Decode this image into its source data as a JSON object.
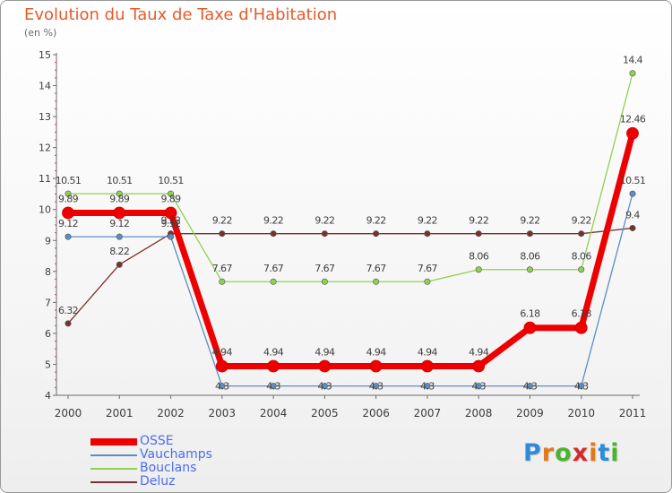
{
  "header": {
    "title": "Evolution du Taux de Taxe d'Habitation",
    "subtitle": "(en %)"
  },
  "brand": {
    "text": "Proxiti",
    "letter_colors": [
      "#2e8bd8",
      "#e07a1c",
      "#4db32e",
      "#d62a2a",
      "#e07a1c",
      "#2e8bd8",
      "#4db32e"
    ]
  },
  "chart_data": {
    "type": "line",
    "title": "Evolution du Taux de Taxe d'Habitation",
    "subtitle": "(en %)",
    "xlabel": "",
    "ylabel": "",
    "categories": [
      "2000",
      "2001",
      "2002",
      "2003",
      "2004",
      "2005",
      "2006",
      "2007",
      "2008",
      "2009",
      "2010",
      "2011"
    ],
    "ylim": [
      4,
      15
    ],
    "yticks": [
      "4",
      "5",
      "6",
      "7",
      "8",
      "9",
      "10",
      "11",
      "12",
      "13",
      "14",
      "15"
    ],
    "grid": false,
    "legend_position": "bottom-left",
    "series": [
      {
        "name": "OSSE",
        "color": "#ee0000",
        "values": [
          9.89,
          9.89,
          9.89,
          4.94,
          4.94,
          4.94,
          4.94,
          4.94,
          4.94,
          6.18,
          6.18,
          12.46
        ],
        "labels": [
          "9.89",
          "9.89",
          "9.89",
          "4.94",
          "4.94",
          "4.94",
          "4.94",
          "4.94",
          "4.94",
          "6.18",
          "6.18",
          "12.46"
        ]
      },
      {
        "name": "Vauchamps",
        "color": "#5b8ec4",
        "values": [
          9.12,
          9.12,
          9.12,
          4.3,
          4.3,
          4.3,
          4.3,
          4.3,
          4.3,
          4.3,
          4.3,
          10.51
        ],
        "labels": [
          "9.12",
          "9.12",
          "9.12",
          "4.3",
          "4.3",
          "4.3",
          "4.3",
          "4.3",
          "4.3",
          "4.3",
          "4.3",
          "10.51"
        ]
      },
      {
        "name": "Bouclans",
        "color": "#8fd14f",
        "values": [
          10.51,
          10.51,
          10.51,
          7.67,
          7.67,
          7.67,
          7.67,
          7.67,
          8.06,
          8.06,
          8.06,
          14.4
        ],
        "labels": [
          "10.51",
          "10.51",
          "10.51",
          "7.67",
          "7.67",
          "7.67",
          "7.67",
          "7.67",
          "8.06",
          "8.06",
          "8.06",
          "14.4"
        ]
      },
      {
        "name": "Deluz",
        "color": "#7b3030",
        "values": [
          6.32,
          8.22,
          9.22,
          9.22,
          9.22,
          9.22,
          9.22,
          9.22,
          9.22,
          9.22,
          9.22,
          9.4
        ],
        "labels": [
          "6.32",
          "8.22",
          "9.22",
          "9.22",
          "9.22",
          "9.22",
          "9.22",
          "9.22",
          "9.22",
          "9.22",
          "9.22",
          "9.4"
        ]
      }
    ]
  }
}
